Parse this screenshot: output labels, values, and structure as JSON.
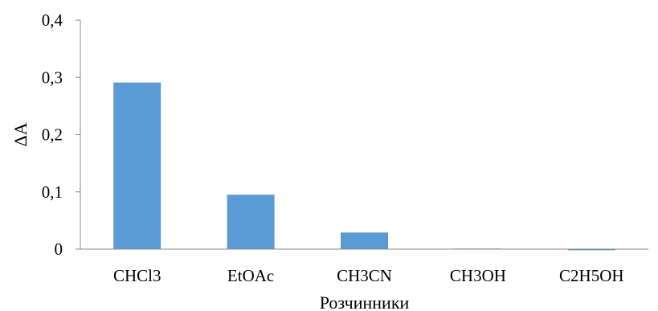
{
  "chart_data": {
    "type": "bar",
    "categories": [
      "CHCl3",
      "EtOAc",
      "CH3CN",
      "CH3OH",
      "C2H5OH"
    ],
    "values": [
      0.291,
      0.095,
      0.029,
      0.001,
      -0.002
    ],
    "xlabel": "Розчинники",
    "ylabel": "ΔA",
    "ylim": [
      0,
      0.4
    ],
    "yticks": [
      "0",
      "0,1",
      "0,2",
      "0,3",
      "0,4"
    ],
    "ytick_values": [
      0,
      0.1,
      0.2,
      0.3,
      0.4
    ],
    "grid": false,
    "legend": "none",
    "bar_color": "#5b9bd5",
    "axis_color": "#898989"
  }
}
